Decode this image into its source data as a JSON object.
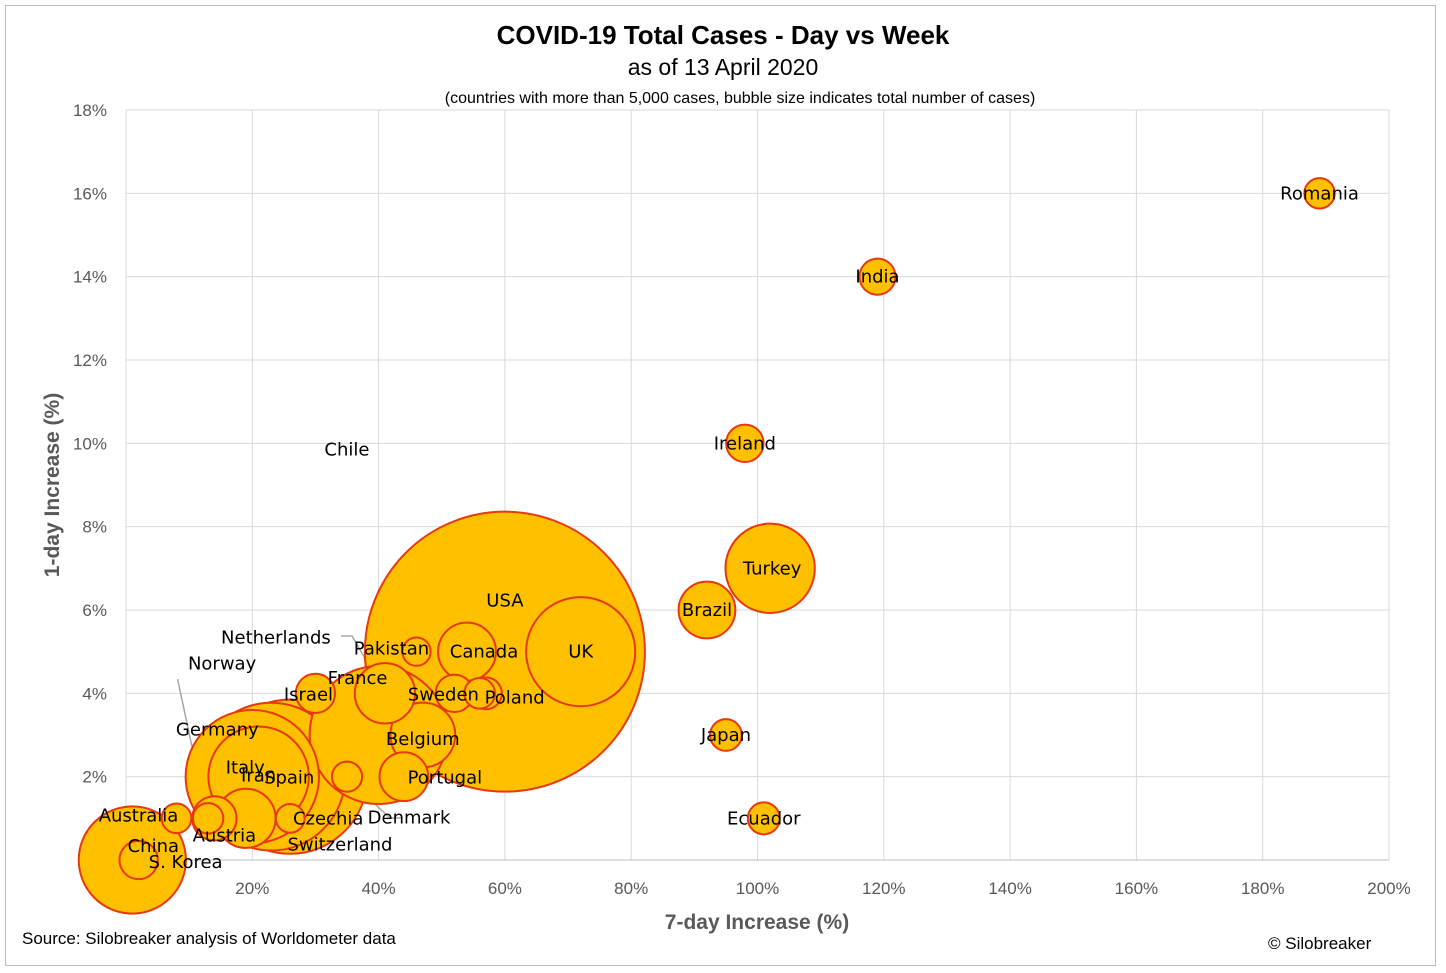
{
  "chart_data": {
    "type": "scatter",
    "title": "COVID-19 Total Cases - Day vs Week",
    "subtitle": "as of 13 April 2020",
    "note": "(countries with more than 5,000 cases, bubble size indicates total number of cases)",
    "xlabel": "7-day Increase (%)",
    "ylabel": "1-day Increase (%)",
    "xlim": [
      0,
      200
    ],
    "ylim": [
      0,
      18
    ],
    "xticks": [
      0,
      20,
      40,
      60,
      80,
      100,
      120,
      140,
      160,
      180,
      200
    ],
    "yticks": [
      0,
      2,
      4,
      6,
      8,
      10,
      12,
      14,
      16,
      18
    ],
    "xtick_labels": [
      "0%",
      "20%",
      "40%",
      "60%",
      "80%",
      "100%",
      "120%",
      "140%",
      "160%",
      "180%",
      "200%"
    ],
    "ytick_labels": [
      "0%",
      "2%",
      "4%",
      "6%",
      "8%",
      "10%",
      "12%",
      "14%",
      "16%",
      "18%"
    ],
    "grid": true,
    "bubble_color": "#FFC000",
    "bubble_edge": "#E8380D",
    "leader_color": "#A6A6A6",
    "points": [
      {
        "label": "USA",
        "x": 60,
        "y": 5,
        "size": 560000
      },
      {
        "label": "Spain",
        "x": 26,
        "y": 2,
        "size": 170000
      },
      {
        "label": "Italy",
        "x": 23,
        "y": 2,
        "size": 156000
      },
      {
        "label": "France",
        "x": 40,
        "y": 3,
        "size": 136000
      },
      {
        "label": "Germany",
        "x": 20,
        "y": 2,
        "size": 127000
      },
      {
        "label": "UK",
        "x": 72,
        "y": 5,
        "size": 85000
      },
      {
        "label": "China",
        "x": 1,
        "y": 0,
        "size": 82000
      },
      {
        "label": "Iran",
        "x": 21,
        "y": 2,
        "size": 72000
      },
      {
        "label": "Turkey",
        "x": 102,
        "y": 7,
        "size": 57000
      },
      {
        "label": "Belgium",
        "x": 47,
        "y": 3,
        "size": 30000
      },
      {
        "label": "Netherlands",
        "x": 41,
        "y": 4,
        "size": 26000
      },
      {
        "label": "Switzerland",
        "x": 19,
        "y": 1,
        "size": 25000
      },
      {
        "label": "Canada",
        "x": 54,
        "y": 5,
        "size": 24000
      },
      {
        "label": "Brazil",
        "x": 92,
        "y": 6,
        "size": 23000
      },
      {
        "label": "Portugal",
        "x": 44,
        "y": 2,
        "size": 17000
      },
      {
        "label": "Austria",
        "x": 14,
        "y": 1,
        "size": 14000
      },
      {
        "label": "Ireland",
        "x": 98,
        "y": 10,
        "size": 10000
      },
      {
        "label": "Sweden",
        "x": 52,
        "y": 4,
        "size": 10000
      },
      {
        "label": "Israel",
        "x": 30,
        "y": 4,
        "size": 11000
      },
      {
        "label": "S. Korea",
        "x": 2,
        "y": 0,
        "size": 10500
      },
      {
        "label": "India",
        "x": 119,
        "y": 14,
        "size": 9300
      },
      {
        "label": "Romania",
        "x": 189,
        "y": 16,
        "size": 6600
      },
      {
        "label": "Chile",
        "x": 57,
        "y": 4,
        "size": 7200
      },
      {
        "label": "Ecuador",
        "x": 101,
        "y": 1,
        "size": 7300
      },
      {
        "label": "Japan",
        "x": 95,
        "y": 3,
        "size": 7200
      },
      {
        "label": "Norway",
        "x": 13,
        "y": 1,
        "size": 6600
      },
      {
        "label": "Poland",
        "x": 56,
        "y": 4,
        "size": 6700
      },
      {
        "label": "Denmark",
        "x": 35,
        "y": 2,
        "size": 6500
      },
      {
        "label": "Australia",
        "x": 8,
        "y": 1,
        "size": 6300
      },
      {
        "label": "Pakistan",
        "x": 46,
        "y": 5,
        "size": 5700
      },
      {
        "label": "Czechia",
        "x": 26,
        "y": 1,
        "size": 5900
      }
    ]
  },
  "source": "Source: Silobreaker analysis of Worldometer data",
  "copyright": "© Silobreaker"
}
